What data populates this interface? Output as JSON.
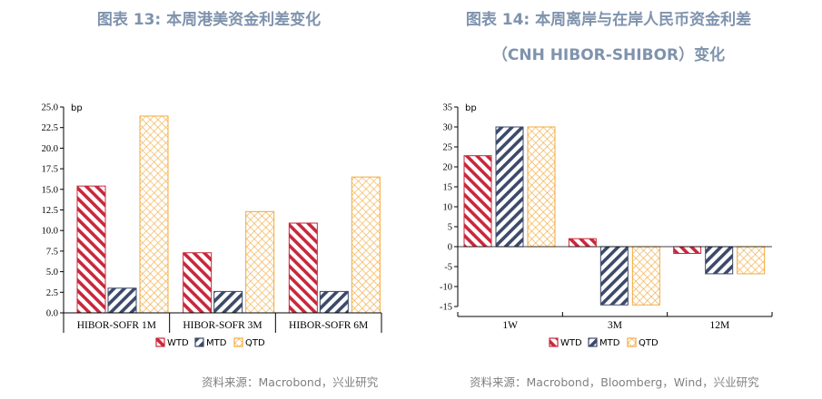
{
  "left": {
    "title": "图表 13: 本周港美资金利差变化",
    "source": "资料来源：Macrobond，兴业研究"
  },
  "right": {
    "title_line1": "图表 14: 本周离岸与在岸人民币资金利差",
    "title_line2": "（CNH HIBOR-SHIBOR）变化",
    "source": "资料来源：Macrobond，Bloomberg，Wind，兴业研究"
  },
  "colors": {
    "WTD": "#c8283c",
    "MTD": "#3c4a6a",
    "QTD": "#f2a93b"
  },
  "chart_data": [
    {
      "type": "bar",
      "unit": "bp",
      "categories": [
        "HIBOR-SOFR 1M",
        "HIBOR-SOFR 3M",
        "HIBOR-SOFR 6M"
      ],
      "series": [
        {
          "name": "WTD",
          "values": [
            15.4,
            7.3,
            10.9
          ]
        },
        {
          "name": "MTD",
          "values": [
            3.0,
            2.6,
            2.6
          ]
        },
        {
          "name": "QTD",
          "values": [
            23.9,
            12.3,
            16.5
          ]
        }
      ],
      "ylim": [
        0,
        25
      ],
      "yticks": [
        "0.0",
        "2.5",
        "5.0",
        "7.5",
        "10.0",
        "12.5",
        "15.0",
        "17.5",
        "20.0",
        "22.5",
        "25.0"
      ]
    },
    {
      "type": "bar",
      "unit": "bp",
      "categories": [
        "1W",
        "3M",
        "12M"
      ],
      "series": [
        {
          "name": "WTD",
          "values": [
            22.8,
            2.0,
            -1.7
          ]
        },
        {
          "name": "MTD",
          "values": [
            30.0,
            -14.6,
            -6.8
          ]
        },
        {
          "name": "QTD",
          "values": [
            30.0,
            -14.6,
            -6.8
          ]
        }
      ],
      "ylim": [
        -15,
        35
      ],
      "yticks": [
        "-15",
        "-10",
        "-5",
        "0",
        "5",
        "10",
        "15",
        "20",
        "25",
        "30",
        "35"
      ]
    }
  ]
}
